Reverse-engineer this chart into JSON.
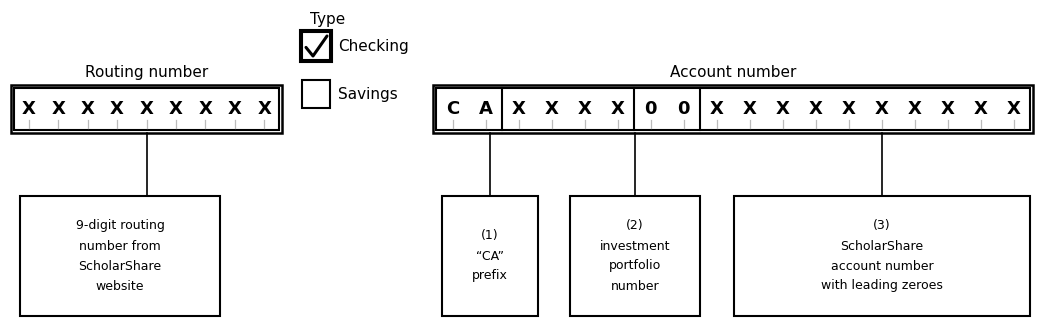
{
  "title_type": "Type",
  "routing_label": "Routing number",
  "account_label": "Account number",
  "checking_label": "Checking",
  "savings_label": "Savings",
  "routing_chars": [
    "X",
    "X",
    "X",
    "X",
    "X",
    "X",
    "X",
    "X",
    "X"
  ],
  "account_chars": [
    "C",
    "A",
    "X",
    "X",
    "X",
    "X",
    "0",
    "0",
    "X",
    "X",
    "X",
    "X",
    "X",
    "X",
    "X",
    "X",
    "X",
    "X"
  ],
  "account_dividers": [
    2,
    6,
    8
  ],
  "desc1": "9-digit routing\nnumber from\nScholarShare\nwebsite",
  "desc2": "(1)\n“CA”\nprefix",
  "desc3": "(2)\ninvestment\nportfolio\nnumber",
  "desc4": "(3)\nScholarShare\naccount number\nwith leading zeroes",
  "bg_color": "#ffffff",
  "text_color": "#000000",
  "desc2_color": "#000000",
  "font_size_label": 11,
  "font_size_char": 13,
  "font_size_desc": 9,
  "font_size_title": 11
}
